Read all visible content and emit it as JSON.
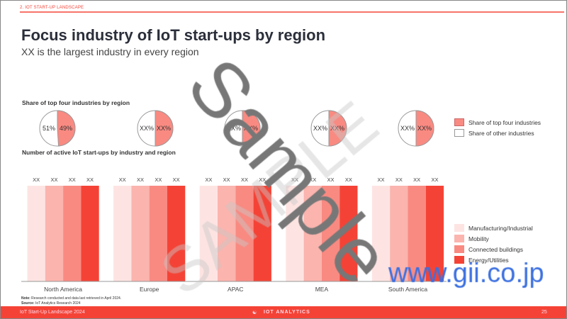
{
  "header": {
    "section": "2. IOT START-UP LANDSCAPE",
    "title": "Focus industry of IoT start-ups by region",
    "subtitle": "XX is the largest industry in every region"
  },
  "chart_data": [
    {
      "type": "pie",
      "title": "Share of top four industries by region",
      "categories": [
        "North America",
        "Europe",
        "APAC",
        "MEA",
        "South America"
      ],
      "series": [
        {
          "name": "Share of top four industries",
          "values": [
            49,
            50,
            50,
            50,
            50
          ],
          "labels": [
            "49%",
            "XX%",
            "XX%",
            "XX%",
            "XX%"
          ],
          "color": "#f98a82"
        },
        {
          "name": "Share of other industries",
          "values": [
            51,
            50,
            50,
            50,
            50
          ],
          "labels": [
            "51%",
            "XX%",
            "XX%",
            "XX%",
            "XX%"
          ],
          "color": "#ffffff"
        }
      ],
      "legend": "right"
    },
    {
      "type": "bar",
      "title": "Number of active IoT start-ups by industry and region",
      "categories": [
        "North America",
        "Europe",
        "APAC",
        "MEA",
        "South America"
      ],
      "series": [
        {
          "name": "Manufacturing/Industrial",
          "color": "#fde4e2",
          "labels": [
            "XX",
            "XX",
            "XX",
            "XX",
            "XX"
          ]
        },
        {
          "name": "Mobility",
          "color": "#fbb4ae",
          "labels": [
            "XX",
            "XX",
            "XX",
            "XX",
            "XX"
          ]
        },
        {
          "name": "Connected buildings",
          "color": "#f98a82",
          "labels": [
            "XX",
            "XX",
            "XX",
            "XX",
            "XX"
          ]
        },
        {
          "name": "Energy/Utilities",
          "color": "#f44336",
          "labels": [
            "XX",
            "XX",
            "XX",
            "XX",
            "XX"
          ]
        }
      ],
      "legend": "right",
      "grid": false
    }
  ],
  "footer": {
    "note_label": "Note:",
    "note": "Research conducted and data last retrieved in April 2024.",
    "source_label": "Source:",
    "source": "IoT Analytics Research 2024",
    "left": "IoT Start-Up Landscape 2024",
    "brand": "IOT ANALYTICS",
    "page": "25"
  },
  "watermarks": {
    "sample": "Sample",
    "sample2": "SAMPLE",
    "site": "www.gii.co.jp"
  }
}
